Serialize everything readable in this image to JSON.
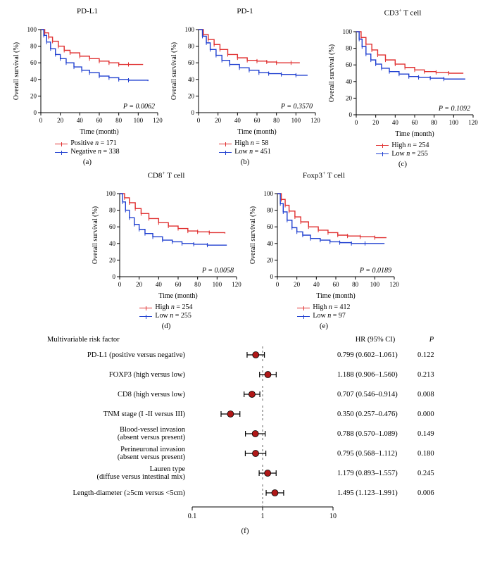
{
  "colors": {
    "series_positive": "#e03030",
    "series_negative": "#2040d0",
    "axis": "#000000",
    "forest_point": "#b01818",
    "forest_point_stroke": "#000000",
    "forest_dash": "#666666",
    "background": "#ffffff"
  },
  "km_common": {
    "ylabel": "Overall survival (%)",
    "xlabel": "Time (month)",
    "xlim": [
      0,
      120
    ],
    "ylim": [
      0,
      100
    ],
    "xticks": [
      0,
      20,
      40,
      60,
      80,
      100,
      120
    ],
    "yticks": [
      0,
      20,
      40,
      60,
      80,
      100
    ],
    "label_fontsize": 10
  },
  "panels": [
    {
      "key": "a",
      "letter": "(a)",
      "title": "PD-L1",
      "p_label": "P = 0.0062",
      "legend": [
        {
          "color_key": "series_positive",
          "label_html": "Positive <span class='italic'>n</span> = 171"
        },
        {
          "color_key": "series_negative",
          "label_html": "Negative <span class='italic'>n</span> = 338"
        }
      ],
      "series": [
        {
          "color_key": "series_positive",
          "points": [
            [
              0,
              100
            ],
            [
              4,
              96
            ],
            [
              8,
              91
            ],
            [
              12,
              86
            ],
            [
              18,
              80
            ],
            [
              24,
              75
            ],
            [
              30,
              72
            ],
            [
              40,
              68
            ],
            [
              50,
              65
            ],
            [
              60,
              62
            ],
            [
              70,
              60
            ],
            [
              80,
              58
            ],
            [
              90,
              58
            ],
            [
              105,
              58
            ]
          ]
        },
        {
          "color_key": "series_negative",
          "points": [
            [
              0,
              100
            ],
            [
              3,
              93
            ],
            [
              6,
              85
            ],
            [
              10,
              77
            ],
            [
              15,
              70
            ],
            [
              20,
              65
            ],
            [
              26,
              60
            ],
            [
              34,
              55
            ],
            [
              42,
              51
            ],
            [
              50,
              48
            ],
            [
              60,
              44
            ],
            [
              70,
              42
            ],
            [
              80,
              40
            ],
            [
              90,
              39
            ],
            [
              110,
              38
            ]
          ]
        }
      ]
    },
    {
      "key": "b",
      "letter": "(b)",
      "title": "PD-1",
      "p_label": "P = 0.3570",
      "legend": [
        {
          "color_key": "series_positive",
          "label_html": "High <span class='italic'>n</span> = 58"
        },
        {
          "color_key": "series_negative",
          "label_html": "Low <span class='italic'>n</span> = 451"
        }
      ],
      "series": [
        {
          "color_key": "series_positive",
          "points": [
            [
              0,
              100
            ],
            [
              5,
              94
            ],
            [
              10,
              88
            ],
            [
              16,
              82
            ],
            [
              22,
              76
            ],
            [
              30,
              70
            ],
            [
              40,
              66
            ],
            [
              50,
              63
            ],
            [
              60,
              62
            ],
            [
              70,
              61
            ],
            [
              80,
              60
            ],
            [
              95,
              60
            ],
            [
              104,
              60
            ]
          ]
        },
        {
          "color_key": "series_negative",
          "points": [
            [
              0,
              100
            ],
            [
              4,
              92
            ],
            [
              8,
              84
            ],
            [
              12,
              76
            ],
            [
              18,
              69
            ],
            [
              24,
              63
            ],
            [
              32,
              58
            ],
            [
              42,
              54
            ],
            [
              52,
              51
            ],
            [
              62,
              48
            ],
            [
              72,
              47
            ],
            [
              85,
              46
            ],
            [
              100,
              45
            ],
            [
              112,
              45
            ]
          ]
        }
      ]
    },
    {
      "key": "c",
      "letter": "(c)",
      "title_html": "CD3<sup>+</sup> T cell",
      "p_label": "P = 0.1092",
      "legend": [
        {
          "color_key": "series_positive",
          "label_html": "High <span class='italic'>n</span> = 254"
        },
        {
          "color_key": "series_negative",
          "label_html": "Low <span class='italic'>n</span> = 255"
        }
      ],
      "series": [
        {
          "color_key": "series_positive",
          "points": [
            [
              0,
              100
            ],
            [
              5,
              93
            ],
            [
              10,
              85
            ],
            [
              16,
              78
            ],
            [
              22,
              72
            ],
            [
              30,
              66
            ],
            [
              40,
              61
            ],
            [
              50,
              57
            ],
            [
              60,
              54
            ],
            [
              70,
              52
            ],
            [
              82,
              51
            ],
            [
              95,
              50
            ],
            [
              110,
              50
            ]
          ]
        },
        {
          "color_key": "series_negative",
          "points": [
            [
              0,
              100
            ],
            [
              3,
              91
            ],
            [
              6,
              82
            ],
            [
              10,
              73
            ],
            [
              15,
              66
            ],
            [
              20,
              61
            ],
            [
              26,
              56
            ],
            [
              34,
              52
            ],
            [
              44,
              49
            ],
            [
              54,
              46
            ],
            [
              64,
              45
            ],
            [
              76,
              44
            ],
            [
              90,
              43
            ],
            [
              112,
              43
            ]
          ]
        }
      ]
    },
    {
      "key": "d",
      "letter": "(d)",
      "title_html": "CD8<sup>+</sup> T cell",
      "p_label": "P = 0.0058",
      "legend": [
        {
          "color_key": "series_positive",
          "label_html": "High <span class='italic'>n</span> = 254"
        },
        {
          "color_key": "series_negative",
          "label_html": "Low <span class='italic'>n</span> = 255"
        }
      ],
      "series": [
        {
          "color_key": "series_positive",
          "points": [
            [
              0,
              100
            ],
            [
              5,
              95
            ],
            [
              10,
              89
            ],
            [
              16,
              82
            ],
            [
              22,
              76
            ],
            [
              30,
              70
            ],
            [
              40,
              65
            ],
            [
              50,
              61
            ],
            [
              60,
              58
            ],
            [
              70,
              55
            ],
            [
              80,
              54
            ],
            [
              92,
              53
            ],
            [
              108,
              52
            ]
          ]
        },
        {
          "color_key": "series_negative",
          "points": [
            [
              0,
              100
            ],
            [
              3,
              90
            ],
            [
              6,
              80
            ],
            [
              10,
              71
            ],
            [
              15,
              63
            ],
            [
              20,
              57
            ],
            [
              26,
              52
            ],
            [
              34,
              48
            ],
            [
              44,
              44
            ],
            [
              54,
              42
            ],
            [
              64,
              40
            ],
            [
              76,
              39
            ],
            [
              90,
              38
            ],
            [
              110,
              38
            ]
          ]
        }
      ]
    },
    {
      "key": "e",
      "letter": "(e)",
      "title_html": "Foxp3<sup>+</sup> T cell",
      "p_label": "P = 0.0189",
      "legend": [
        {
          "color_key": "series_positive",
          "label_html": "High <span class='italic'>n</span> = 412"
        },
        {
          "color_key": "series_negative",
          "label_html": "Low <span class='italic'>n</span> = 97"
        }
      ],
      "series": [
        {
          "color_key": "series_positive",
          "points": [
            [
              0,
              100
            ],
            [
              4,
              93
            ],
            [
              8,
              86
            ],
            [
              12,
              79
            ],
            [
              18,
              72
            ],
            [
              24,
              66
            ],
            [
              32,
              60
            ],
            [
              42,
              56
            ],
            [
              52,
              53
            ],
            [
              62,
              50
            ],
            [
              72,
              49
            ],
            [
              85,
              48
            ],
            [
              100,
              47
            ],
            [
              112,
              47
            ]
          ]
        },
        {
          "color_key": "series_negative",
          "points": [
            [
              0,
              100
            ],
            [
              3,
              88
            ],
            [
              6,
              78
            ],
            [
              10,
              68
            ],
            [
              15,
              59
            ],
            [
              20,
              54
            ],
            [
              26,
              50
            ],
            [
              34,
              46
            ],
            [
              44,
              44
            ],
            [
              54,
              42
            ],
            [
              64,
              41
            ],
            [
              76,
              40
            ],
            [
              90,
              40
            ],
            [
              110,
              40
            ]
          ]
        }
      ]
    }
  ],
  "forest": {
    "letter": "(f)",
    "headers": {
      "factor": "Multivariable risk factor",
      "hr": "HR (95% CI)",
      "p": "P"
    },
    "xscale": "log",
    "xlim": [
      0.1,
      10
    ],
    "xticks": [
      0.1,
      1,
      10
    ],
    "ref_line": 1,
    "rows": [
      {
        "label_html": "PD-L1 (positive versus negative)",
        "hr": 0.799,
        "lo": 0.602,
        "hi": 1.061,
        "hr_text": "0.799 (0.602–1.061)",
        "p": "0.122"
      },
      {
        "label_html": "FOXP3 (high versus low)",
        "hr": 1.188,
        "lo": 0.906,
        "hi": 1.56,
        "hr_text": "1.188 (0.906–1.560)",
        "p": "0.213"
      },
      {
        "label_html": "CD8 (high versus low)",
        "hr": 0.707,
        "lo": 0.546,
        "hi": 0.914,
        "hr_text": "0.707 (0.546–0.914)",
        "p": "0.008"
      },
      {
        "label_html": "TNM stage (I -II versus III)",
        "hr": 0.35,
        "lo": 0.257,
        "hi": 0.476,
        "hr_text": "0.350 (0.257–0.476)",
        "p": "0.000"
      },
      {
        "label_html": "Blood-vessel invasion<br>(absent versus present)",
        "hr": 0.788,
        "lo": 0.57,
        "hi": 1.089,
        "hr_text": "0.788 (0.570–1.089)",
        "p": "0.149"
      },
      {
        "label_html": "Perineuronal invasion<br>(absent versus present)",
        "hr": 0.795,
        "lo": 0.568,
        "hi": 1.112,
        "hr_text": "0.795 (0.568–1.112)",
        "p": "0.180"
      },
      {
        "label_html": "Lauren type<br>(diffuse versus intestinal mix)",
        "hr": 1.179,
        "lo": 0.893,
        "hi": 1.557,
        "hr_text": "1.179 (0.893–1.557)",
        "p": "0.245"
      },
      {
        "label_html": "Length-diameter (≥5cm versus <5cm)",
        "hr": 1.495,
        "lo": 1.123,
        "hi": 1.991,
        "hr_text": "1.495 (1.123–1.991)",
        "p": "0.006"
      }
    ]
  }
}
